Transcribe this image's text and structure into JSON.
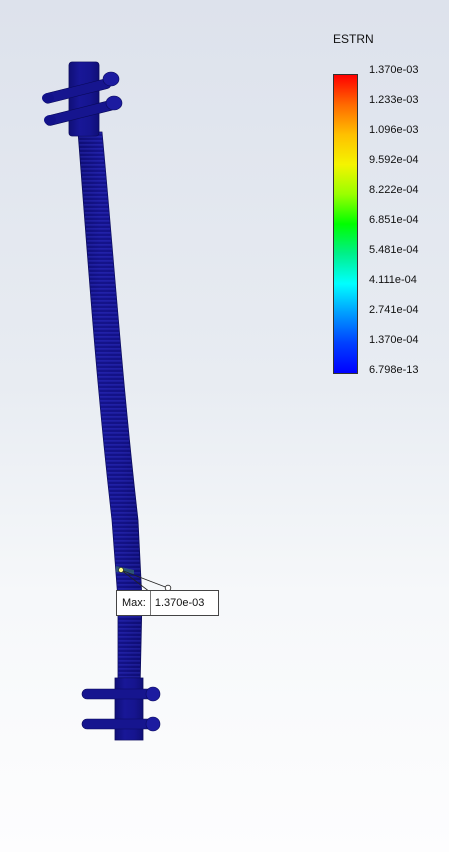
{
  "legend": {
    "title": "ESTRN",
    "labels": [
      "1.370e-03",
      "1.233e-03",
      "1.096e-03",
      "9.592e-04",
      "8.222e-04",
      "6.851e-04",
      "5.481e-04",
      "4.111e-04",
      "2.741e-04",
      "1.370e-04",
      "6.798e-13"
    ]
  },
  "probe": {
    "label": "Max:",
    "value": "1.370e-03"
  },
  "colors": {
    "model": "#13128c",
    "model_dark": "#0a0a6e",
    "model_light": "#2a2ab0"
  }
}
